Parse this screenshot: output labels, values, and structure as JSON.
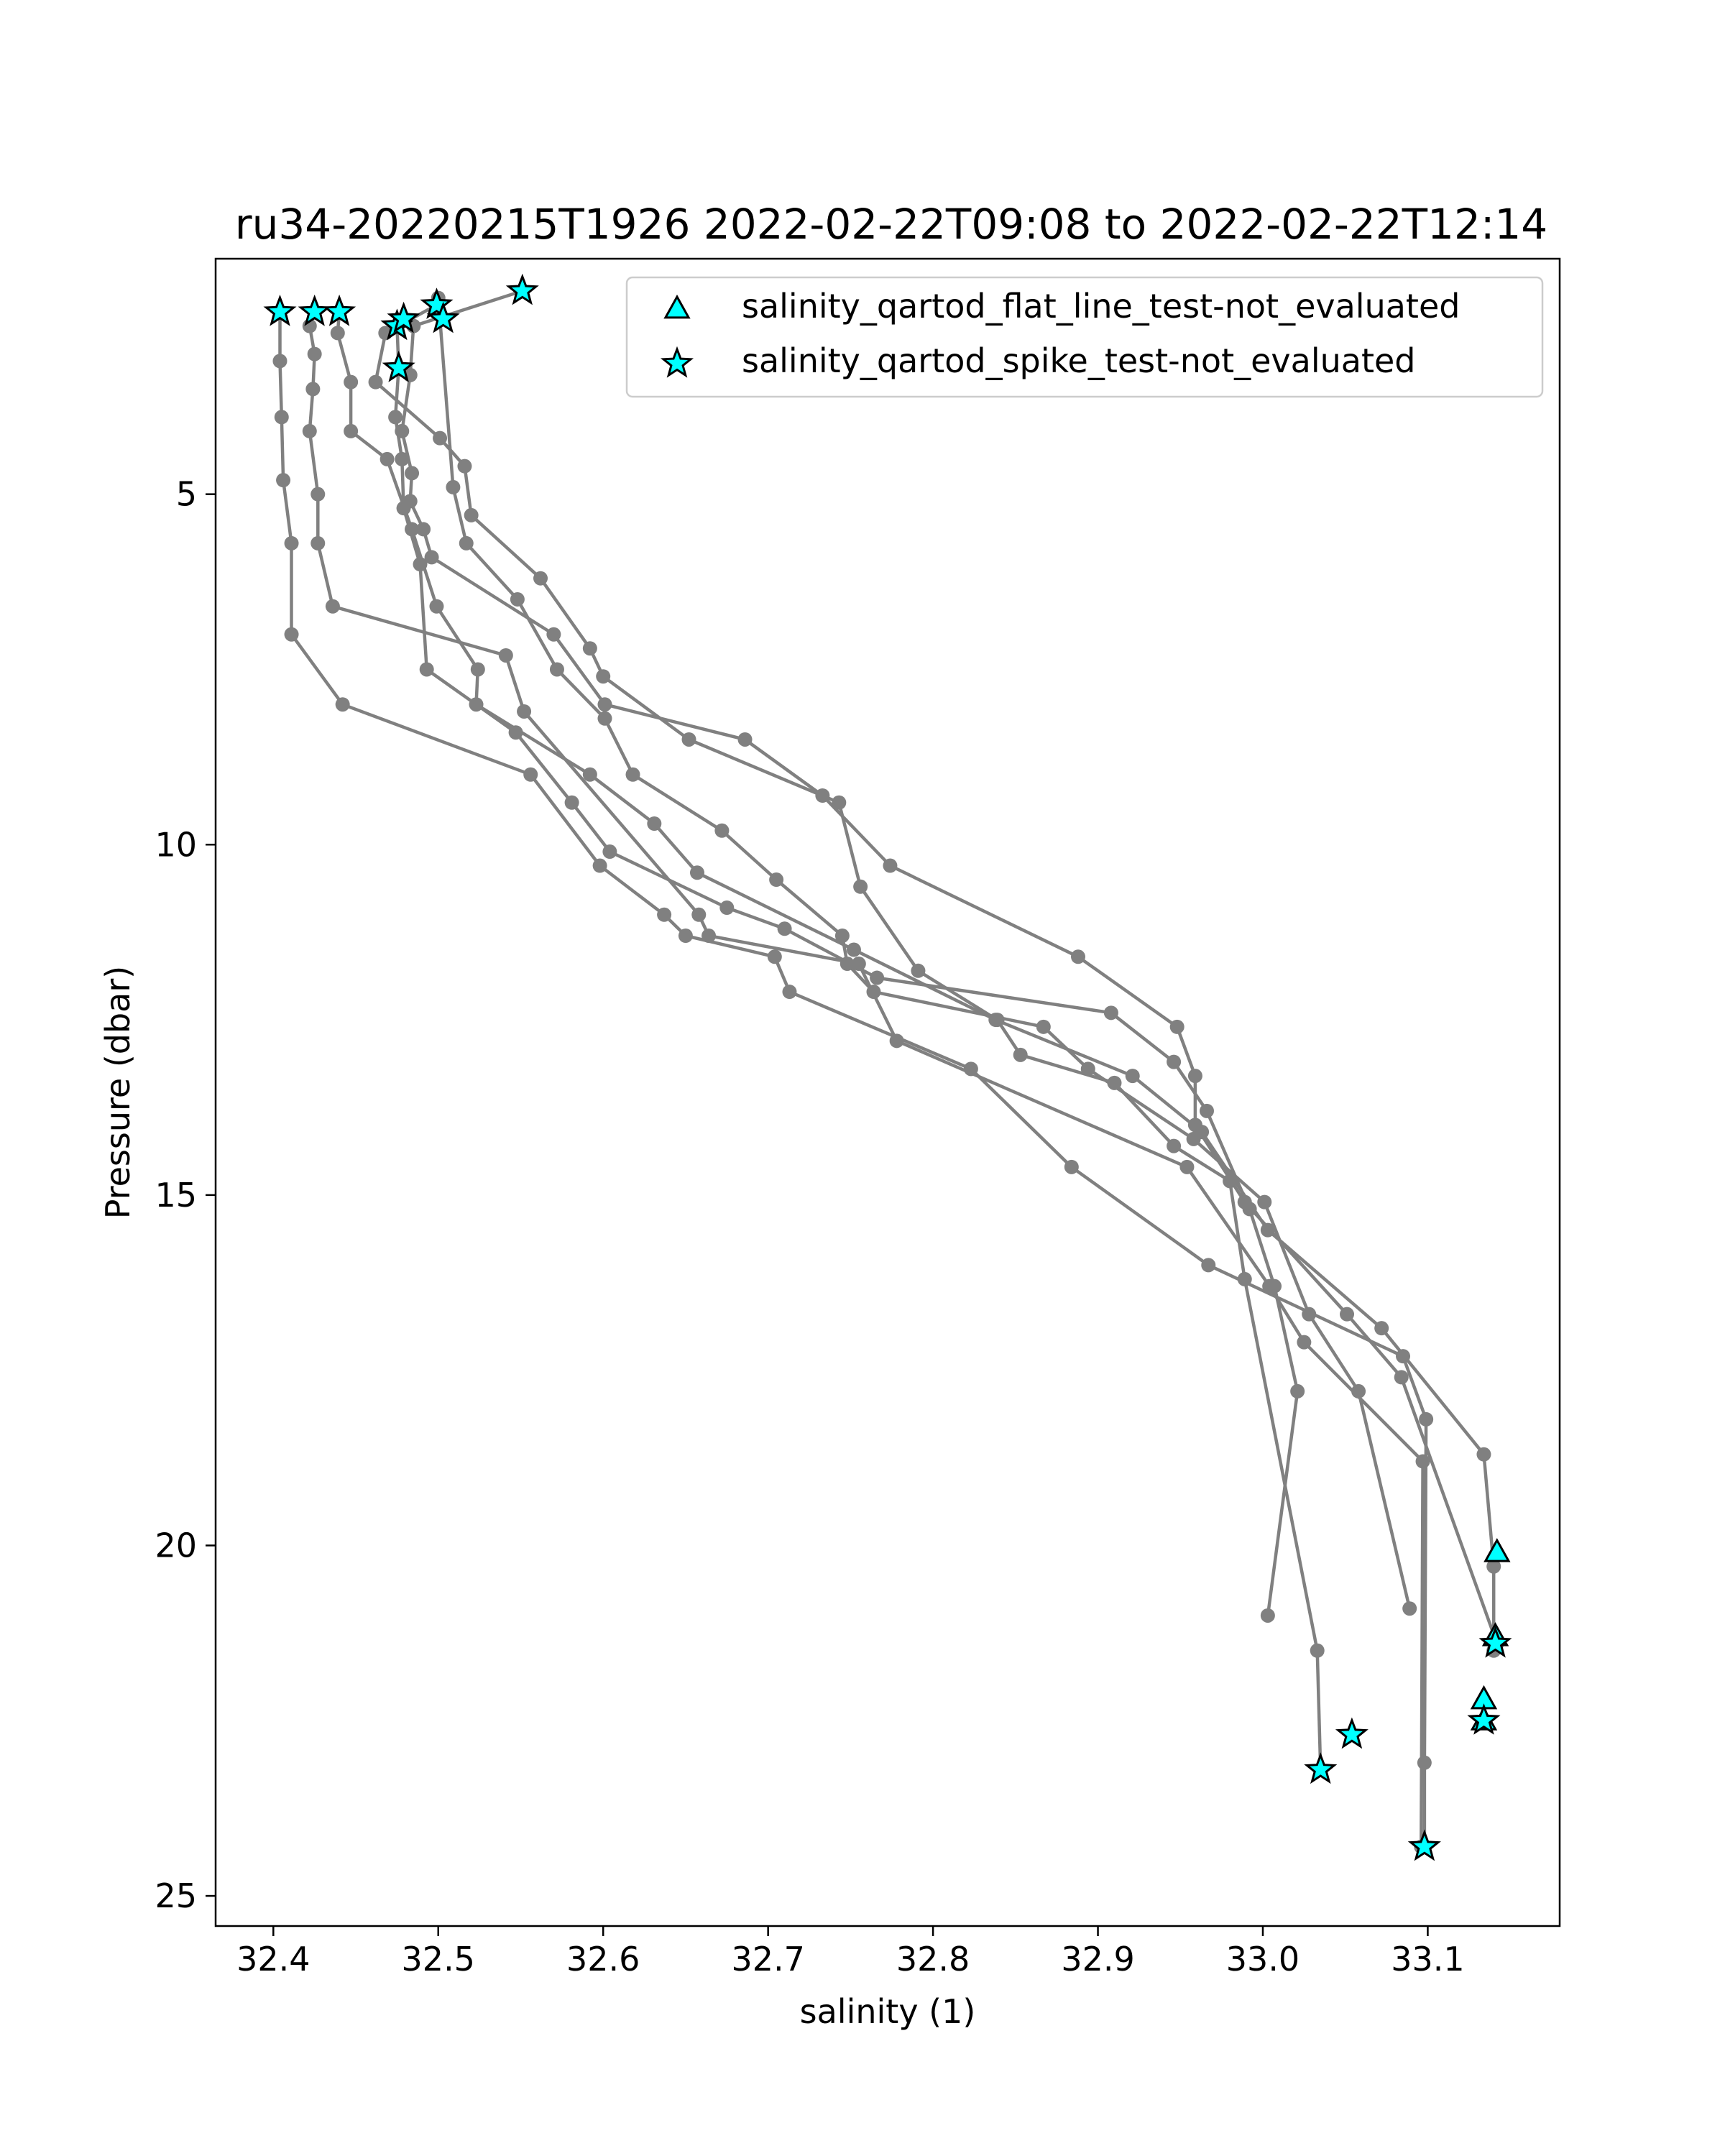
{
  "chart_data": {
    "type": "line",
    "title": "ru34-20220215T1926 2022-02-22T09:08 to 2022-02-22T12:14",
    "xlabel": "salinity (1)",
    "ylabel": "Pressure (dbar)",
    "xlim": [
      32.365,
      33.18
    ],
    "ylim": [
      25.43,
      1.64
    ],
    "y_inverted": true,
    "xticks": [
      "32.4",
      "32.5",
      "32.6",
      "32.7",
      "32.8",
      "32.9",
      "33.0",
      "33.1"
    ],
    "xtick_values": [
      32.4,
      32.5,
      32.6,
      32.7,
      32.8,
      32.9,
      33.0,
      33.1
    ],
    "yticks": [
      "5",
      "10",
      "15",
      "20",
      "25"
    ],
    "ytick_values": [
      5,
      10,
      15,
      20,
      25
    ],
    "grid": false,
    "legend_position": "top-right",
    "colors": {
      "line": "#808080",
      "marker_fill": "#00ffff",
      "marker_edge": "#000000"
    },
    "legend": [
      {
        "marker": "triangle",
        "label": "salinity_qartod_flat_line_test-not_evaluated"
      },
      {
        "marker": "star",
        "label": "salinity_qartod_spike_test-not_evaluated"
      }
    ],
    "series": [
      {
        "x": [
          32.404,
          32.404,
          32.405,
          32.406,
          32.411,
          32.411,
          32.442,
          32.556,
          32.598,
          32.637,
          32.65,
          32.704,
          32.713,
          32.823,
          32.884,
          32.967,
          33.085,
          33.099,
          33.098,
          33.098
        ],
        "y": [
          2.4,
          3.1,
          3.9,
          4.8,
          5.7,
          7.0,
          8.0,
          9.0,
          10.3,
          11.0,
          11.3,
          11.6,
          12.1,
          13.2,
          14.6,
          16.0,
          17.3,
          18.2,
          23.1,
          24.3
        ]
      },
      {
        "x": [
          32.425,
          32.422,
          32.425,
          32.424,
          32.422,
          32.427,
          32.427,
          32.436,
          32.541,
          32.552,
          32.658,
          32.664,
          32.755,
          32.778,
          32.954,
          33.004,
          33.025,
          33.097,
          33.096
        ],
        "y": [
          2.4,
          2.6,
          3.0,
          3.5,
          4.1,
          5.0,
          5.7,
          6.6,
          7.3,
          8.1,
          11.0,
          11.3,
          11.7,
          12.8,
          14.6,
          16.3,
          17.1,
          18.8,
          24.3
        ]
      },
      {
        "x": [
          32.44,
          32.439,
          32.447,
          32.447,
          32.469,
          32.484,
          32.499,
          32.524,
          32.523,
          32.592,
          32.631,
          32.657,
          32.752,
          32.838,
          32.921,
          32.963,
          33.003,
          33.072,
          33.134,
          33.14,
          33.14
        ],
        "y": [
          2.4,
          2.7,
          3.4,
          4.1,
          4.5,
          5.5,
          6.6,
          7.5,
          8.0,
          9.0,
          9.7,
          10.4,
          11.5,
          12.5,
          13.3,
          14.1,
          15.5,
          16.9,
          18.7,
          20.3,
          21.5
        ]
      },
      {
        "x": [
          32.475,
          32.476,
          32.474,
          32.478,
          32.479,
          32.489,
          32.493,
          32.547,
          32.581,
          32.604,
          32.675,
          32.71,
          32.766,
          32.908,
          32.946,
          32.966,
          32.992,
          33.007,
          33.021,
          33.003
        ],
        "y": [
          2.6,
          3.2,
          3.9,
          4.5,
          5.2,
          6.0,
          7.5,
          8.4,
          9.4,
          10.1,
          10.9,
          11.2,
          11.9,
          12.4,
          13.1,
          13.8,
          15.2,
          16.3,
          17.8,
          21.0
        ]
      },
      {
        "x": [
          32.499,
          32.468,
          32.462,
          32.501,
          32.516,
          32.52,
          32.562,
          32.592,
          32.6,
          32.652,
          32.743,
          32.756,
          32.791,
          32.839,
          32.853,
          32.91,
          32.946,
          32.98,
          32.989,
          33.033,
          33.035
        ],
        "y": [
          2.3,
          2.7,
          3.4,
          4.2,
          4.6,
          5.3,
          6.2,
          7.2,
          7.6,
          8.5,
          9.4,
          10.6,
          11.8,
          12.5,
          13.0,
          13.4,
          14.3,
          14.8,
          16.2,
          21.5,
          23.2
        ]
      },
      {
        "x": [
          32.551,
          32.485,
          32.483,
          32.478,
          32.484,
          32.483,
          32.491,
          32.496,
          32.57,
          32.601,
          32.686,
          32.733,
          32.774,
          32.888,
          32.948,
          32.959,
          32.959,
          32.989,
          33.051,
          33.084,
          33.142
        ],
        "y": [
          2.1,
          2.6,
          3.3,
          4.1,
          4.7,
          5.1,
          5.5,
          5.9,
          7.0,
          8.0,
          8.5,
          9.3,
          10.3,
          11.6,
          12.6,
          13.3,
          14.0,
          15.1,
          16.7,
          17.6,
          21.4
        ]
      },
      {
        "x": [
          32.5,
          32.509,
          32.517,
          32.548,
          32.572,
          32.601,
          32.618,
          32.672,
          32.705,
          32.745,
          32.748,
          32.764,
          32.867,
          32.894,
          32.958,
          33.001,
          33.028,
          33.058,
          33.089
        ],
        "y": [
          2.2,
          4.9,
          5.7,
          6.5,
          7.5,
          8.2,
          9.0,
          9.8,
          10.5,
          11.3,
          11.7,
          12.1,
          12.6,
          13.2,
          14.2,
          15.1,
          16.7,
          17.8,
          20.9
        ]
      }
    ],
    "spike_not_evaluated": {
      "x": [
        32.404,
        32.425,
        32.44,
        32.475,
        32.479,
        32.476,
        32.499,
        32.503,
        32.551,
        33.035,
        33.054,
        33.098,
        33.134,
        33.141
      ],
      "y": [
        2.4,
        2.4,
        2.4,
        2.6,
        2.5,
        3.2,
        2.3,
        2.5,
        2.1,
        23.2,
        22.7,
        24.3,
        22.5,
        21.4
      ]
    },
    "flat_line_not_evaluated": {
      "x": [
        33.142,
        33.134,
        33.141,
        33.134
      ],
      "y": [
        20.1,
        22.2,
        21.3,
        22.5
      ]
    }
  }
}
